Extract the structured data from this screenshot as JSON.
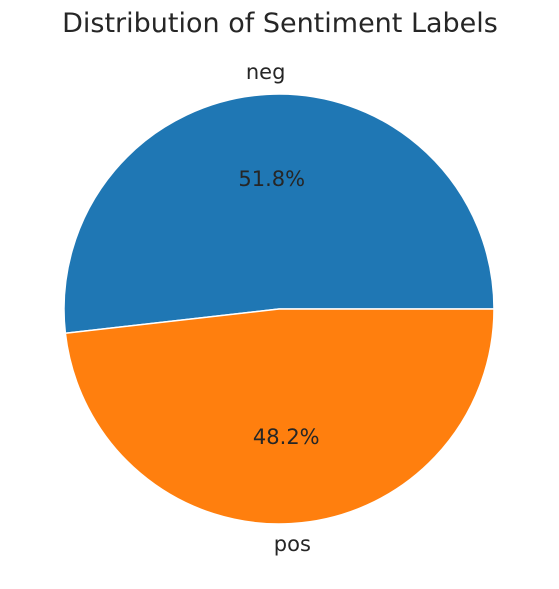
{
  "chart_data": {
    "type": "pie",
    "title": "Distribution of Sentiment Labels",
    "categories": [
      "neg",
      "pos"
    ],
    "values": [
      51.8,
      48.2
    ],
    "value_labels": [
      "51.8%",
      "48.2%"
    ],
    "colors": [
      "#1f77b4",
      "#ff7f0e"
    ],
    "start_angle_deg": 0,
    "direction": "counterclockwise"
  }
}
